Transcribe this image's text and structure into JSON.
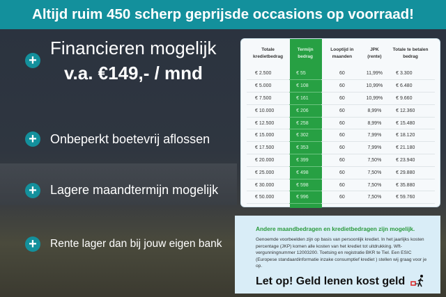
{
  "header": {
    "title": "Altijd ruim 450 scherp geprijsde occasions op voorraad!"
  },
  "features": {
    "financing_line1": "Financieren mogelijk",
    "financing_line2": "v.a. €149,- / mnd",
    "items": [
      "Onbeperkt boetevrij aflossen",
      "Lagere maandtermijn mogelijk",
      "Rente lager dan bij jouw eigen bank"
    ]
  },
  "colors": {
    "header": "#13909c",
    "highlight_column": "#27a043",
    "info_heading": "#2a9a3c"
  },
  "table": {
    "headers": [
      "Totale kredietbedrag",
      "Termijn bedrag",
      "Looptijd in maanden",
      "JPK (rente)",
      "Totale te betalen bedrag"
    ],
    "rows": [
      [
        "€ 2.500",
        "€ 55",
        "60",
        "11,99%",
        "€ 3.300"
      ],
      [
        "€ 5.000",
        "€ 108",
        "60",
        "10,99%",
        "€ 6.480"
      ],
      [
        "€ 7.500",
        "€ 161",
        "60",
        "10,99%",
        "€ 9.660"
      ],
      [
        "€ 10.000",
        "€ 206",
        "60",
        "8,99%",
        "€ 12.360"
      ],
      [
        "€ 12.500",
        "€ 258",
        "60",
        "8,99%",
        "€ 15.480"
      ],
      [
        "€ 15.000",
        "€ 302",
        "60",
        "7,99%",
        "€ 18.120"
      ],
      [
        "€ 17.500",
        "€ 353",
        "60",
        "7,99%",
        "€ 21.180"
      ],
      [
        "€ 20.000",
        "€ 399",
        "60",
        "7,50%",
        "€ 23.940"
      ],
      [
        "€ 25.000",
        "€ 498",
        "60",
        "7,50%",
        "€ 29.880"
      ],
      [
        "€ 30.000",
        "€ 598",
        "60",
        "7,50%",
        "€ 35.880"
      ],
      [
        "€ 50.000",
        "€ 996",
        "60",
        "7,50%",
        "€ 59.760"
      ]
    ]
  },
  "info": {
    "heading": "Andere maandbedragen en kredietbedragen zijn mogelijk.",
    "body": "Genoemde voorbeelden zijn op basis van persoonlijk krediet. In het jaarlijks kosten percentage (JKP) komen alle kosten van het krediet tot uitdrukking. Wft-vergunningnummer 12003200. Toetsing en registratie BKR te Tiel. Een ESIC (Europese standaardinformatie inzake consumptief krediet ) stellen wij graag voor je op.",
    "warning": "Let op! Geld lenen kost geld"
  }
}
